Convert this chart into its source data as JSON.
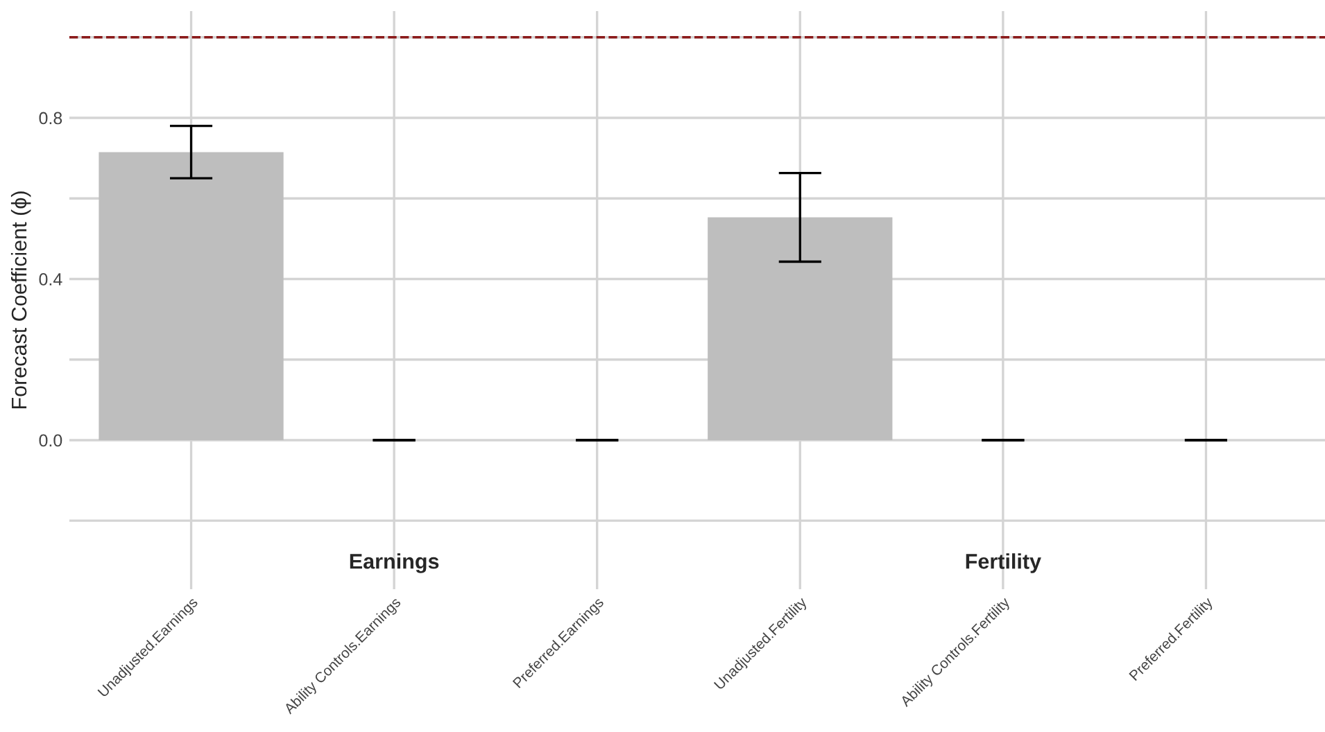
{
  "chart_data": {
    "type": "bar",
    "ylabel": "Forecast Coefficient (ϕ)",
    "categories": [
      "Unadjusted.Earnings",
      "Ability Controls.Earnings",
      "Preferred.Earnings",
      "Unadjusted.Fertility",
      "Ability Controls.Fertility",
      "Preferred.Fertility"
    ],
    "values": [
      0.715,
      0,
      0,
      0.553,
      0,
      0
    ],
    "errors": [
      [
        0.65,
        0.78
      ],
      [
        0,
        0
      ],
      [
        0,
        0
      ],
      [
        0.443,
        0.663
      ],
      [
        0,
        0
      ],
      [
        0,
        0
      ]
    ],
    "color": "#bebebe",
    "ylim": [
      -0.37,
      1.065
    ],
    "yticks": [
      {
        "value": -0.2,
        "label": null
      },
      {
        "value": 0.0,
        "label": "0.0"
      },
      {
        "value": 0.2,
        "label": null
      },
      0.4,
      {
        "value": 0.6,
        "label": null
      },
      0.8,
      {
        "value": 1.0,
        "label": null
      }
    ],
    "ref_lines": [
      {
        "axis": "y",
        "value": 1.0,
        "color": "#8b1a1a",
        "line_style": "dashed"
      }
    ],
    "annotations": [
      "Earnings",
      "Fertility"
    ],
    "grid": true,
    "legend": false
  }
}
